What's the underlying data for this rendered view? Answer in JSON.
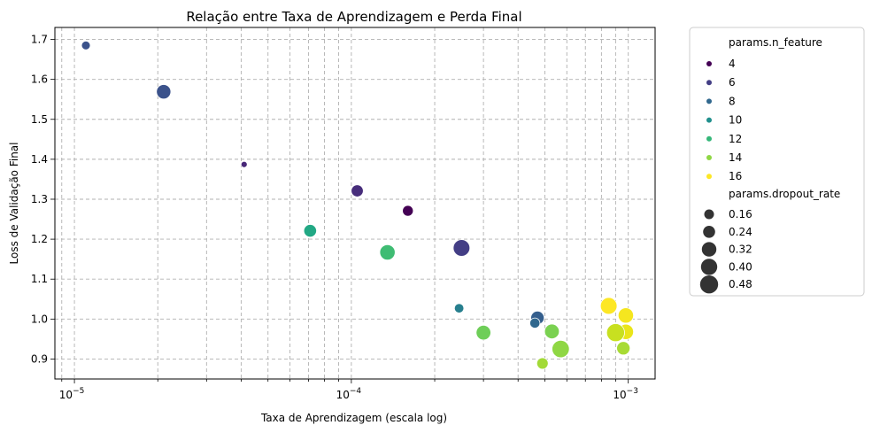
{
  "chart_data": {
    "type": "scatter",
    "title": "Relação entre Taxa de Aprendizagem e Perda Final",
    "xlabel": "Taxa de Aprendizagem (escala log)",
    "ylabel": "Loss de Validação Final",
    "xscale": "log",
    "xlim": [
      8.5e-06,
      0.00125
    ],
    "ylim": [
      0.85,
      1.73
    ],
    "x_ticks": [
      {
        "value": 1e-05,
        "base": "10",
        "exp": "−5"
      },
      {
        "value": 0.0001,
        "base": "10",
        "exp": "−4"
      },
      {
        "value": 0.001,
        "base": "10",
        "exp": "−3"
      }
    ],
    "y_ticks": [
      0.9,
      1.0,
      1.1,
      1.2,
      1.3,
      1.4,
      1.5,
      1.6,
      1.7
    ],
    "y_tick_labels": [
      "0.9",
      "1.0",
      "1.1",
      "1.2",
      "1.3",
      "1.4",
      "1.5",
      "1.6",
      "1.7"
    ],
    "grid": true,
    "grid_minor_x": true,
    "legend_placement": "outside right",
    "hue_title": "params.n_feature",
    "hue_levels": [
      {
        "label": "4",
        "value": 4,
        "color": "#440154"
      },
      {
        "label": "6",
        "value": 6,
        "color": "#433e85"
      },
      {
        "label": "8",
        "value": 8,
        "color": "#31688e"
      },
      {
        "label": "10",
        "value": 10,
        "color": "#21908d"
      },
      {
        "label": "12",
        "value": 12,
        "color": "#35b779"
      },
      {
        "label": "14",
        "value": 14,
        "color": "#8fd744"
      },
      {
        "label": "16",
        "value": 16,
        "color": "#fde725"
      }
    ],
    "size_title": "params.dropout_rate",
    "size_levels": [
      {
        "label": "0.16",
        "value": 0.16
      },
      {
        "label": "0.24",
        "value": 0.24
      },
      {
        "label": "0.32",
        "value": 0.32
      },
      {
        "label": "0.40",
        "value": 0.4
      },
      {
        "label": "0.48",
        "value": 0.48
      }
    ],
    "points": [
      {
        "lr": 1.1e-05,
        "loss": 1.685,
        "n_feature": 7,
        "dropout": 0.18,
        "color": "#3b528b"
      },
      {
        "lr": 2.1e-05,
        "loss": 1.569,
        "n_feature": 7,
        "dropout": 0.35,
        "color": "#3b528b"
      },
      {
        "lr": 4.1e-05,
        "loss": 1.387,
        "n_feature": 5,
        "dropout": 0.1,
        "color": "#482878"
      },
      {
        "lr": 0.000105,
        "loss": 1.321,
        "n_feature": 5.5,
        "dropout": 0.28,
        "color": "#472d7b"
      },
      {
        "lr": 0.00016,
        "loss": 1.271,
        "n_feature": 4,
        "dropout": 0.24,
        "color": "#440154"
      },
      {
        "lr": 7.1e-05,
        "loss": 1.221,
        "n_feature": 11,
        "dropout": 0.3,
        "color": "#22a884"
      },
      {
        "lr": 0.000135,
        "loss": 1.167,
        "n_feature": 12.5,
        "dropout": 0.38,
        "color": "#3fbc73"
      },
      {
        "lr": 0.00025,
        "loss": 1.178,
        "n_feature": 6,
        "dropout": 0.42,
        "color": "#433e85"
      },
      {
        "lr": 0.000245,
        "loss": 1.027,
        "n_feature": 9.5,
        "dropout": 0.2,
        "color": "#277f8e"
      },
      {
        "lr": 0.00047,
        "loss": 1.003,
        "n_feature": 7.5,
        "dropout": 0.32,
        "color": "#355f8d"
      },
      {
        "lr": 0.00046,
        "loss": 0.99,
        "n_feature": 8,
        "dropout": 0.22,
        "color": "#31688e"
      },
      {
        "lr": 0.0003,
        "loss": 0.966,
        "n_feature": 13.5,
        "dropout": 0.36,
        "color": "#6ece58"
      },
      {
        "lr": 0.00053,
        "loss": 0.969,
        "n_feature": 13.8,
        "dropout": 0.36,
        "color": "#7ad151"
      },
      {
        "lr": 0.00057,
        "loss": 0.925,
        "n_feature": 14,
        "dropout": 0.44,
        "color": "#8fd744"
      },
      {
        "lr": 0.00049,
        "loss": 0.889,
        "n_feature": 14.5,
        "dropout": 0.26,
        "color": "#a2da37"
      },
      {
        "lr": 0.00085,
        "loss": 1.033,
        "n_feature": 16,
        "dropout": 0.42,
        "color": "#fde725"
      },
      {
        "lr": 0.00098,
        "loss": 1.009,
        "n_feature": 16,
        "dropout": 0.38,
        "color": "#f5e61f"
      },
      {
        "lr": 0.00098,
        "loss": 0.968,
        "n_feature": 16,
        "dropout": 0.38,
        "color": "#eae51a"
      },
      {
        "lr": 0.0009,
        "loss": 0.966,
        "n_feature": 15,
        "dropout": 0.46,
        "color": "#c8e020"
      },
      {
        "lr": 0.00096,
        "loss": 0.927,
        "n_feature": 14.5,
        "dropout": 0.32,
        "color": "#a8db34"
      }
    ]
  }
}
